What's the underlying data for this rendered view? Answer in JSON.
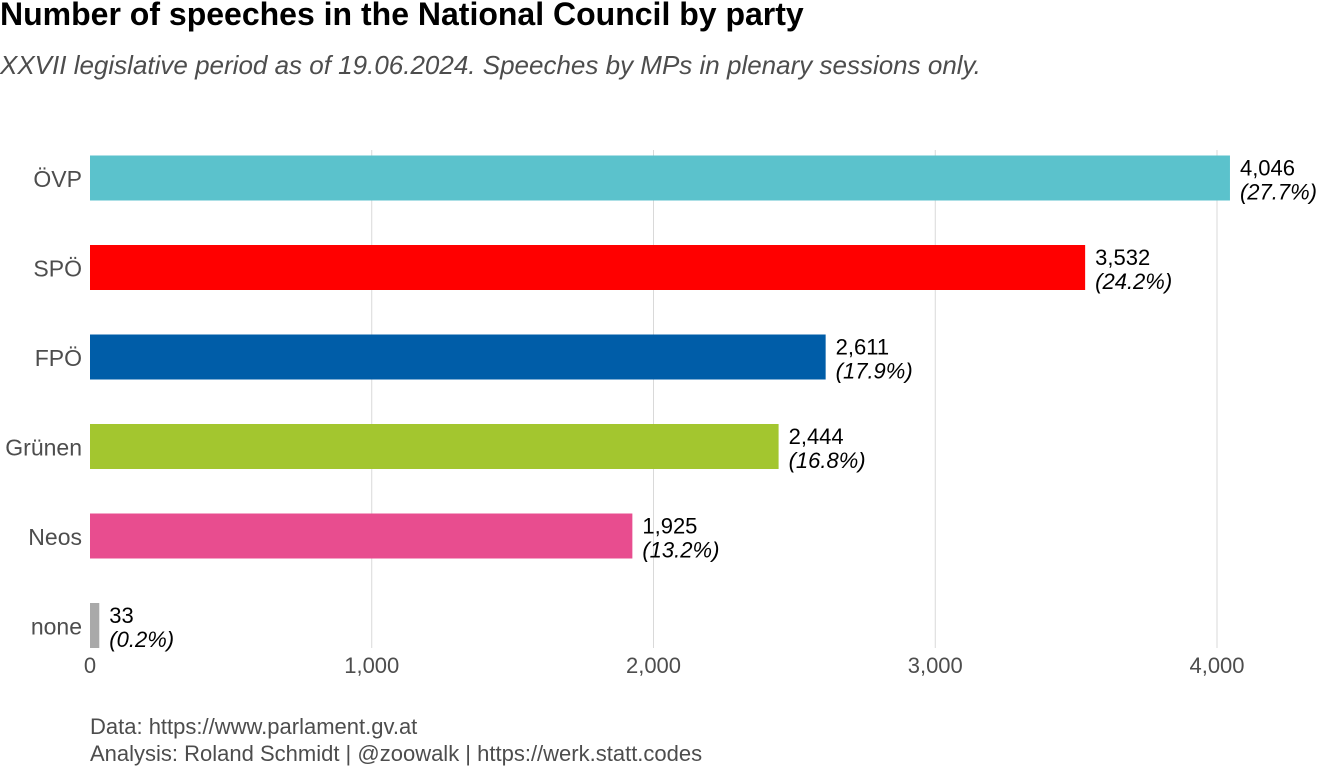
{
  "chart_data": {
    "type": "bar",
    "orientation": "horizontal",
    "title": "Number of speeches in the National Council by party",
    "subtitle": "XXVII legislative period as of 19.06.2024. Speeches by MPs in plenary sessions only.",
    "categories": [
      "ÖVP",
      "SPÖ",
      "FPÖ",
      "Grünen",
      "Neos",
      "none"
    ],
    "values": [
      4046,
      3532,
      2611,
      2444,
      1925,
      33
    ],
    "value_labels": [
      "4,046",
      "3,532",
      "2,611",
      "2,444",
      "1,925",
      "33"
    ],
    "percent_labels": [
      "(27.7%)",
      "(24.2%)",
      "(17.9%)",
      "(16.8%)",
      "(13.2%)",
      "(0.2%)"
    ],
    "colors": [
      "#5BC2CC",
      "#FF0000",
      "#005DA8",
      "#A3C62F",
      "#E84D8F",
      "#A9A9A9"
    ],
    "xlim": [
      0,
      4200
    ],
    "xticks": [
      0,
      1000,
      2000,
      3000,
      4000
    ],
    "xtick_labels": [
      "0",
      "1,000",
      "2,000",
      "3,000",
      "4,000"
    ],
    "xlabel": "",
    "ylabel": "",
    "grid": "vertical-major"
  },
  "caption": {
    "line1": "Data: https://www.parlament.gv.at",
    "line2": "Analysis: Roland Schmidt | @zoowalk | https://werk.statt.codes"
  }
}
